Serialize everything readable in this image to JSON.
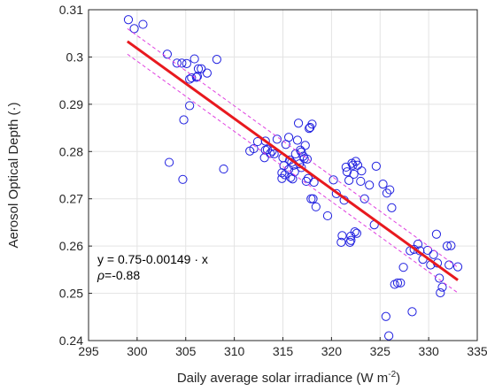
{
  "chart_data": {
    "type": "scatter",
    "title": "",
    "xlabel": "Daily average solar irradiance (W m",
    "xlabel_sup": "-2",
    "xlabel_end": ")",
    "ylabel": "Aerosol Optical Depth (·)",
    "xlim": [
      295,
      335
    ],
    "ylim": [
      0.24,
      0.31
    ],
    "xticks": [
      295,
      300,
      305,
      310,
      315,
      320,
      325,
      330,
      335
    ],
    "yticks": [
      0.24,
      0.25,
      0.26,
      0.27,
      0.28,
      0.29,
      0.3,
      0.31
    ],
    "grid": true,
    "annotations": {
      "equation": "y = 0.75-0.00149 · x",
      "rho_symbol": "ρ",
      "rho_value": "=-0.88"
    },
    "fit": {
      "x": [
        299,
        333
      ],
      "y": [
        0.3033,
        0.2528
      ],
      "color": "#e8191e"
    },
    "confidence_upper": {
      "x": [
        299,
        333
      ],
      "y": [
        0.306,
        0.2555
      ],
      "color": "#e040e0"
    },
    "confidence_lower": {
      "x": [
        299,
        333
      ],
      "y": [
        0.3006,
        0.2501
      ],
      "color": "#e040e0"
    },
    "point_color": "#2020e0",
    "points": {
      "x": [
        299.1,
        299.7,
        300.6,
        303.1,
        304.1,
        304.6,
        305.1,
        305.9,
        306.3,
        306.6,
        307.2,
        308.2,
        306.2,
        305.6,
        305.4,
        306.1,
        305.4,
        304.8,
        303.3,
        304.7,
        308.9,
        311.6,
        312.0,
        312.4,
        313.1,
        313.4,
        313.7,
        313.9,
        313.2,
        314.1,
        314.4,
        313.2,
        315.0,
        315.3,
        315.6,
        315.7,
        315.9,
        316.1,
        316.3,
        316.5,
        316.8,
        316.9,
        317.1,
        317.3,
        317.5,
        317.7,
        317.8,
        318.0,
        315.1,
        315.8,
        316.2,
        316.6,
        316.9,
        317.6,
        318.2,
        318.4,
        315.6,
        316.0,
        316.7,
        317.2,
        317.4,
        314.9,
        318.1,
        317.9,
        314.9,
        315.2,
        319.6,
        320.2,
        320.5,
        321.0,
        321.3,
        321.6,
        321.8,
        322.0,
        322.3,
        322.5,
        322.7,
        323.0,
        323.4,
        323.9,
        324.6,
        325.3,
        325.7,
        326.0,
        321.5,
        322.1,
        322.2,
        321.1,
        322.4,
        322.6,
        324.4,
        323.1,
        322.0,
        321.9,
        326.2,
        326.5,
        326.8,
        327.1,
        327.4,
        328.1,
        328.5,
        328.9,
        329.1,
        329.4,
        329.9,
        330.2,
        330.5,
        330.8,
        331.1,
        331.4,
        331.9,
        332.3,
        333.0,
        330.9,
        331.2,
        332.1,
        328.3,
        325.6,
        325.9
      ],
      "y": [
        0.3079,
        0.306,
        0.3069,
        0.3006,
        0.2987,
        0.2987,
        0.2986,
        0.2996,
        0.2975,
        0.2975,
        0.2966,
        0.2995,
        0.2959,
        0.2956,
        0.2953,
        0.2957,
        0.2897,
        0.2867,
        0.2777,
        0.2741,
        0.2763,
        0.2801,
        0.2806,
        0.2821,
        0.2787,
        0.2804,
        0.2796,
        0.2801,
        0.2803,
        0.2795,
        0.2826,
        0.2822,
        0.2787,
        0.2815,
        0.283,
        0.2782,
        0.2777,
        0.2771,
        0.2795,
        0.2824,
        0.2803,
        0.2799,
        0.279,
        0.2813,
        0.2784,
        0.2849,
        0.2851,
        0.2858,
        0.277,
        0.2745,
        0.2757,
        0.286,
        0.2766,
        0.2743,
        0.2735,
        0.2683,
        0.2762,
        0.2742,
        0.2774,
        0.2785,
        0.2737,
        0.2755,
        0.27,
        0.27,
        0.2743,
        0.2751,
        0.2664,
        0.274,
        0.2711,
        0.2608,
        0.2697,
        0.2757,
        0.2739,
        0.2612,
        0.2752,
        0.2779,
        0.2771,
        0.2737,
        0.27,
        0.2729,
        0.2769,
        0.2731,
        0.2712,
        0.2719,
        0.2767,
        0.2775,
        0.2771,
        0.2622,
        0.263,
        0.2627,
        0.2645,
        0.2759,
        0.2621,
        0.2608,
        0.2681,
        0.2519,
        0.2522,
        0.2522,
        0.2555,
        0.259,
        0.2593,
        0.2604,
        0.259,
        0.2572,
        0.2591,
        0.256,
        0.2582,
        0.2625,
        0.2532,
        0.2513,
        0.26,
        0.2601,
        0.2556,
        0.2564,
        0.2501,
        0.256,
        0.2461,
        0.2451,
        0.241
      ]
    }
  }
}
